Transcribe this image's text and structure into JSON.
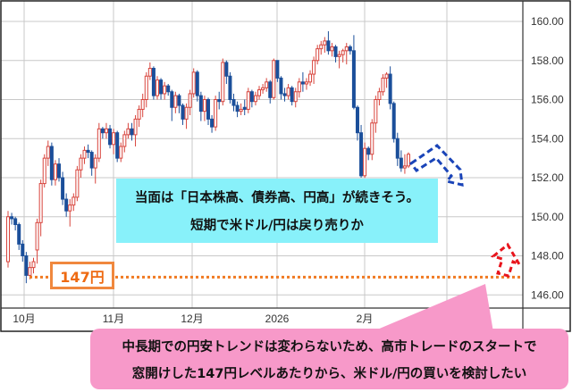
{
  "chart_data": {
    "type": "candlestick",
    "title": "",
    "ylim": [
      145.0,
      161.0
    ],
    "yticks": [
      "160.00",
      "158.00",
      "156.00",
      "154.00",
      "152.00",
      "150.00",
      "148.00",
      "146.00"
    ],
    "xticks": [
      "10月",
      "11月",
      "12月",
      "2026",
      "2月"
    ],
    "grid": true,
    "colors": {
      "up": "#d8443c",
      "down": "#1b4f9a"
    },
    "candles_ohlc": [
      [
        147.7,
        150.3,
        147.4,
        150.0
      ],
      [
        150.0,
        150.2,
        149.6,
        149.9
      ],
      [
        149.9,
        150.0,
        149.3,
        149.6
      ],
      [
        149.6,
        149.7,
        148.3,
        148.6
      ],
      [
        148.6,
        148.8,
        147.7,
        148.0
      ],
      [
        148.0,
        148.2,
        146.6,
        147.0
      ],
      [
        147.0,
        147.7,
        146.8,
        147.4
      ],
      [
        147.4,
        147.9,
        147.1,
        147.7
      ],
      [
        148.3,
        149.9,
        147.6,
        149.7
      ],
      [
        149.7,
        151.9,
        149.0,
        151.7
      ],
      [
        151.7,
        153.2,
        151.5,
        153.0
      ],
      [
        153.0,
        153.9,
        152.6,
        153.6
      ],
      [
        153.6,
        153.8,
        151.6,
        151.9
      ],
      [
        151.9,
        152.9,
        151.6,
        152.7
      ],
      [
        152.7,
        153.0,
        151.8,
        152.0
      ],
      [
        152.0,
        152.3,
        150.6,
        150.9
      ],
      [
        150.9,
        151.2,
        150.0,
        150.3
      ],
      [
        150.3,
        150.9,
        149.5,
        150.6
      ],
      [
        150.6,
        151.2,
        150.3,
        151.0
      ],
      [
        151.0,
        152.6,
        150.8,
        152.4
      ],
      [
        152.4,
        153.2,
        152.0,
        153.0
      ],
      [
        153.0,
        153.6,
        152.7,
        153.4
      ],
      [
        153.4,
        153.7,
        153.0,
        153.3
      ],
      [
        153.3,
        153.4,
        152.1,
        152.5
      ],
      [
        152.5,
        153.2,
        151.7,
        153.0
      ],
      [
        153.0,
        154.8,
        152.8,
        154.5
      ],
      [
        154.5,
        154.6,
        154.0,
        154.3
      ],
      [
        154.3,
        154.8,
        154.0,
        154.5
      ],
      [
        154.5,
        154.7,
        153.5,
        153.7
      ],
      [
        153.7,
        154.5,
        153.2,
        154.3
      ],
      [
        154.3,
        154.4,
        152.8,
        153.0
      ],
      [
        153.0,
        153.8,
        152.8,
        153.6
      ],
      [
        153.6,
        154.4,
        153.3,
        154.2
      ],
      [
        154.2,
        154.8,
        154.0,
        154.5
      ],
      [
        154.5,
        154.8,
        153.9,
        154.2
      ],
      [
        154.2,
        155.2,
        153.6,
        155.0
      ],
      [
        155.0,
        155.7,
        154.6,
        155.5
      ],
      [
        155.5,
        156.3,
        155.1,
        156.0
      ],
      [
        156.0,
        157.4,
        155.6,
        157.2
      ],
      [
        157.2,
        157.9,
        157.0,
        157.6
      ],
      [
        157.6,
        157.7,
        156.0,
        156.2
      ],
      [
        156.2,
        157.2,
        156.0,
        157.0
      ],
      [
        157.0,
        157.1,
        156.0,
        156.3
      ],
      [
        156.3,
        156.9,
        156.0,
        156.7
      ],
      [
        156.7,
        156.8,
        156.2,
        156.4
      ],
      [
        156.4,
        156.5,
        154.9,
        155.6
      ],
      [
        155.6,
        156.4,
        155.3,
        156.2
      ],
      [
        156.2,
        156.3,
        155.3,
        155.7
      ],
      [
        155.7,
        155.8,
        154.7,
        155.0
      ],
      [
        155.0,
        155.8,
        154.5,
        155.6
      ],
      [
        155.6,
        156.5,
        155.2,
        156.3
      ],
      [
        156.3,
        157.6,
        156.1,
        157.4
      ],
      [
        157.4,
        157.5,
        155.9,
        156.2
      ],
      [
        156.2,
        156.4,
        154.9,
        155.4
      ],
      [
        155.4,
        156.2,
        154.9,
        156.0
      ],
      [
        156.0,
        156.1,
        154.7,
        155.0
      ],
      [
        155.0,
        155.2,
        154.3,
        154.6
      ],
      [
        154.6,
        156.2,
        154.4,
        156.0
      ],
      [
        156.0,
        156.4,
        155.5,
        155.9
      ],
      [
        155.9,
        158.1,
        155.7,
        157.9
      ],
      [
        157.9,
        158.0,
        156.8,
        157.2
      ],
      [
        157.2,
        157.4,
        155.8,
        156.0
      ],
      [
        156.0,
        156.3,
        155.4,
        155.7
      ],
      [
        155.7,
        155.9,
        155.1,
        155.4
      ],
      [
        155.4,
        155.8,
        155.2,
        155.5
      ],
      [
        155.6,
        156.0,
        155.2,
        155.5
      ],
      [
        155.5,
        156.6,
        155.3,
        156.4
      ],
      [
        156.4,
        156.5,
        155.6,
        155.9
      ],
      [
        155.9,
        156.4,
        155.7,
        156.2
      ],
      [
        156.2,
        156.7,
        156.0,
        156.5
      ],
      [
        156.5,
        156.8,
        156.3,
        156.6
      ],
      [
        156.6,
        157.1,
        156.4,
        156.9
      ],
      [
        156.9,
        157.0,
        155.8,
        156.1
      ],
      [
        156.1,
        158.1,
        156.0,
        158.0
      ],
      [
        158.0,
        158.0,
        156.9,
        157.1
      ],
      [
        157.1,
        157.2,
        156.0,
        156.3
      ],
      [
        156.3,
        156.6,
        155.9,
        156.2
      ],
      [
        156.2,
        156.8,
        156.0,
        156.6
      ],
      [
        156.6,
        156.7,
        155.7,
        155.9
      ],
      [
        155.9,
        156.6,
        155.6,
        156.4
      ],
      [
        156.4,
        157.1,
        156.1,
        156.9
      ],
      [
        156.9,
        157.4,
        156.4,
        156.8
      ],
      [
        156.8,
        157.1,
        156.5,
        156.9
      ],
      [
        156.9,
        157.5,
        156.7,
        157.3
      ],
      [
        157.3,
        158.2,
        156.8,
        158.0
      ],
      [
        158.0,
        158.8,
        157.8,
        158.6
      ],
      [
        158.6,
        159.0,
        158.3,
        158.8
      ],
      [
        158.8,
        159.2,
        158.4,
        159.0
      ],
      [
        159.0,
        159.5,
        158.3,
        158.5
      ],
      [
        158.5,
        158.9,
        158.2,
        158.7
      ],
      [
        158.7,
        158.8,
        157.9,
        158.2
      ],
      [
        158.2,
        158.5,
        157.6,
        158.3
      ],
      [
        158.3,
        158.6,
        157.9,
        158.5
      ],
      [
        158.5,
        158.9,
        157.8,
        158.7
      ],
      [
        158.7,
        158.8,
        158.3,
        158.5
      ],
      [
        158.5,
        159.3,
        155.5,
        155.6
      ],
      [
        155.6,
        155.7,
        153.9,
        154.3
      ],
      [
        154.3,
        154.7,
        152.0,
        152.1
      ],
      [
        152.1,
        153.8,
        152.0,
        153.5
      ],
      [
        153.5,
        153.6,
        152.9,
        153.2
      ],
      [
        153.2,
        155.0,
        152.9,
        154.8
      ],
      [
        154.8,
        156.2,
        154.3,
        156.0
      ],
      [
        156.0,
        156.6,
        155.7,
        156.4
      ],
      [
        156.4,
        157.3,
        156.2,
        157.1
      ],
      [
        157.1,
        157.4,
        156.6,
        157.3
      ],
      [
        157.3,
        157.7,
        155.5,
        155.8
      ],
      [
        155.8,
        155.9,
        153.8,
        154.0
      ],
      [
        154.0,
        154.3,
        152.6,
        153.0
      ],
      [
        153.0,
        153.4,
        152.3,
        152.5
      ],
      [
        152.5,
        153.2,
        152.2,
        152.6
      ],
      [
        152.6,
        153.3,
        152.5,
        153.2
      ]
    ],
    "support_level": 147.0,
    "support_color": "#f07a22"
  },
  "annotations": {
    "short_term": {
      "line1": "当面は「日本株高、債券高、円高」が続きそう。",
      "line2": "短期で米ドル/円は戻り売りか",
      "color": "#88f1fa",
      "arrow_icon": "dashed-down-zigzag-arrow",
      "arrow_color": "#1a44b8"
    },
    "level_label": "147円",
    "long_term": {
      "line1": "中長期での円安トレンドは変わらないため、高市トレードのスタートで",
      "line2": "窓開けした147円レベルあたりから、米ドル/円の買いを検討したい",
      "color": "#f799c9",
      "arrow_icon": "dashed-up-arrow",
      "arrow_color": "#e8141c"
    }
  }
}
